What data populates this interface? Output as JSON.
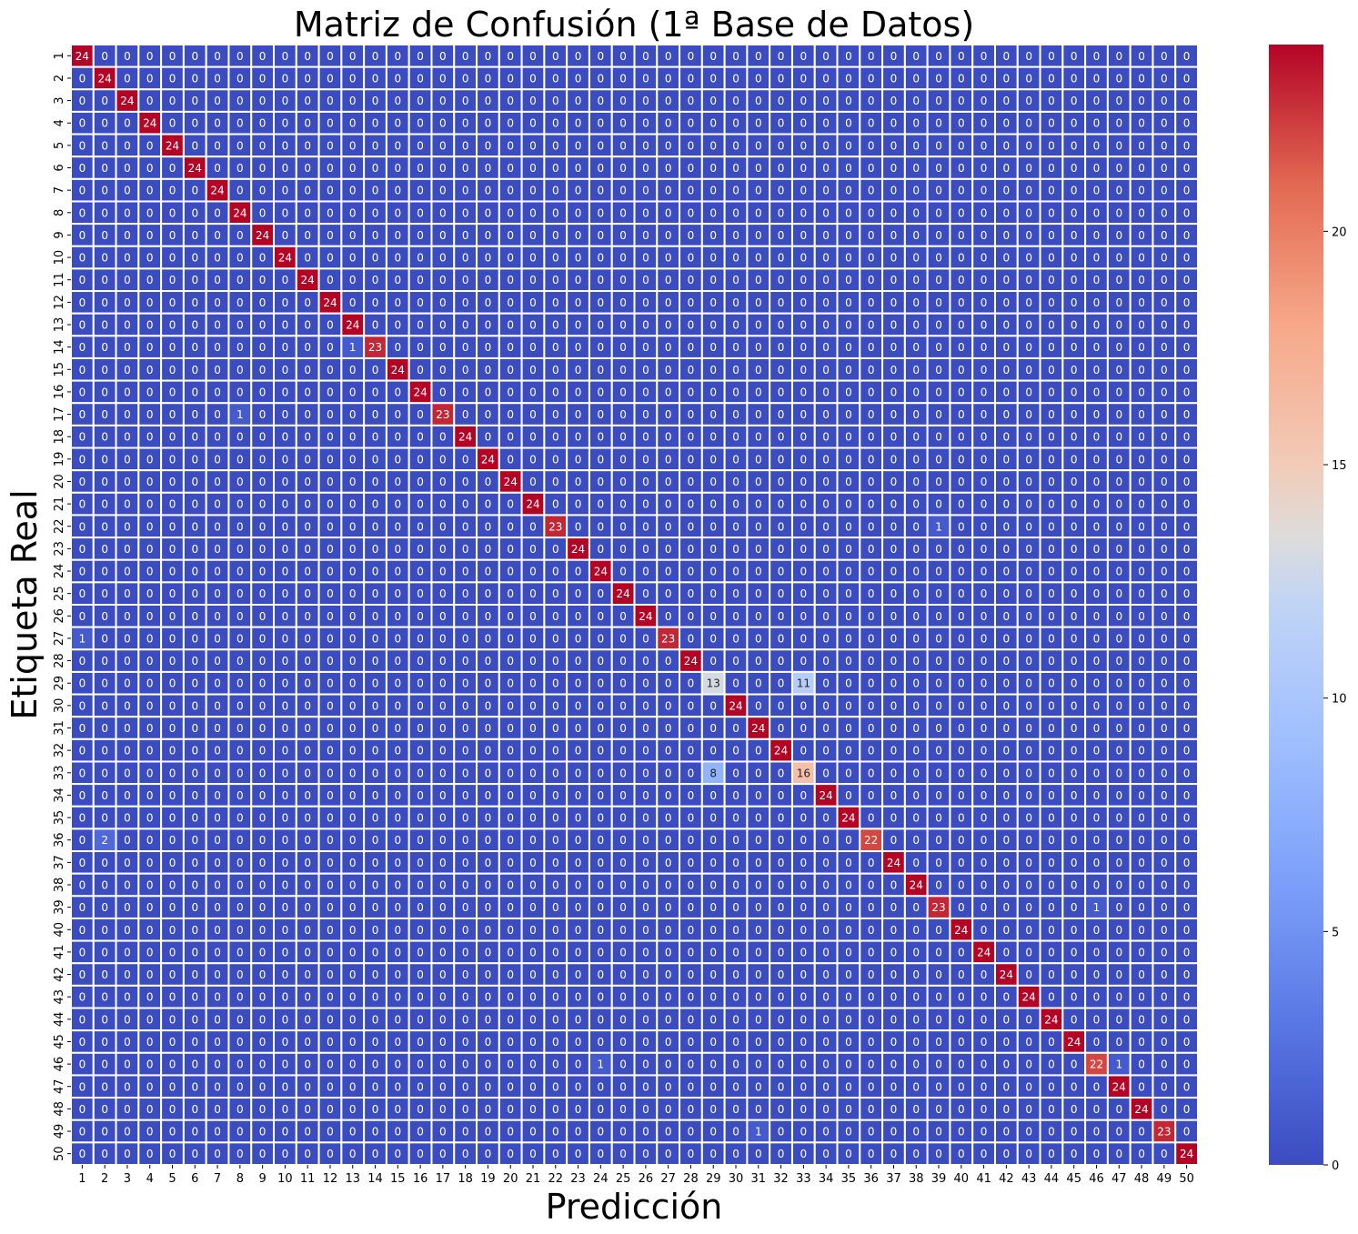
{
  "chart_data": {
    "type": "heatmap",
    "title": "Matriz de Confusión (1ª Base de Datos)",
    "xlabel": "Predicción",
    "ylabel": "Etiqueta Real",
    "labels": [
      "1",
      "2",
      "3",
      "4",
      "5",
      "6",
      "7",
      "8",
      "9",
      "10",
      "11",
      "12",
      "13",
      "14",
      "15",
      "16",
      "17",
      "18",
      "19",
      "20",
      "21",
      "22",
      "23",
      "24",
      "25",
      "26",
      "27",
      "28",
      "29",
      "30",
      "31",
      "32",
      "33",
      "34",
      "35",
      "36",
      "37",
      "38",
      "39",
      "40",
      "41",
      "42",
      "43",
      "44",
      "45",
      "46",
      "47",
      "48",
      "49",
      "50"
    ],
    "diagonal_default": 24,
    "diagonal_overrides": {
      "14": 23,
      "17": 23,
      "22": 23,
      "27": 23,
      "29": 13,
      "33": 16,
      "36": 22,
      "39": 23,
      "46": 22,
      "49": 23
    },
    "off_diagonal": [
      {
        "row": "14",
        "col": "13",
        "value": 1
      },
      {
        "row": "17",
        "col": "8",
        "value": 1
      },
      {
        "row": "22",
        "col": "39",
        "value": 1
      },
      {
        "row": "27",
        "col": "1",
        "value": 1
      },
      {
        "row": "29",
        "col": "33",
        "value": 11
      },
      {
        "row": "33",
        "col": "29",
        "value": 8
      },
      {
        "row": "36",
        "col": "2",
        "value": 2
      },
      {
        "row": "39",
        "col": "46",
        "value": 1
      },
      {
        "row": "46",
        "col": "24",
        "value": 1
      },
      {
        "row": "46",
        "col": "47",
        "value": 1
      },
      {
        "row": "49",
        "col": "31",
        "value": 1
      }
    ],
    "colormap": "coolwarm",
    "vmin": 0,
    "vmax": 24,
    "colorbar_ticks": [
      0,
      5,
      10,
      15,
      20
    ],
    "colors": {
      "low": "#3b4cc0",
      "mid": "#dddddd",
      "high": "#b40426",
      "gridline": "#ffffff"
    }
  }
}
